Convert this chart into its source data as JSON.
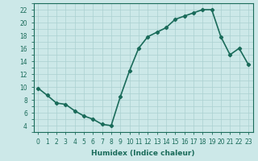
{
  "x": [
    0,
    1,
    2,
    3,
    4,
    5,
    6,
    7,
    8,
    9,
    10,
    11,
    12,
    13,
    14,
    15,
    16,
    17,
    18,
    19,
    20,
    21,
    22,
    23
  ],
  "y": [
    9.8,
    8.7,
    7.5,
    7.3,
    6.3,
    5.5,
    5.0,
    4.2,
    4.0,
    8.5,
    12.5,
    16.0,
    17.8,
    18.5,
    19.2,
    20.5,
    21.0,
    21.5,
    22.0,
    22.0,
    17.8,
    15.0,
    16.0,
    13.5
  ],
  "line_color": "#1a6b5a",
  "marker": "D",
  "marker_size": 2.2,
  "bg_color": "#cce8e8",
  "grid_color": "#aad0d0",
  "xlabel": "Humidex (Indice chaleur)",
  "ylim": [
    3,
    23
  ],
  "xlim": [
    -0.5,
    23.5
  ],
  "yticks": [
    4,
    6,
    8,
    10,
    12,
    14,
    16,
    18,
    20,
    22
  ],
  "xticks": [
    0,
    1,
    2,
    3,
    4,
    5,
    6,
    7,
    8,
    9,
    10,
    11,
    12,
    13,
    14,
    15,
    16,
    17,
    18,
    19,
    20,
    21,
    22,
    23
  ],
  "xtick_labels": [
    "0",
    "1",
    "2",
    "3",
    "4",
    "5",
    "6",
    "7",
    "8",
    "9",
    "10",
    "11",
    "12",
    "13",
    "14",
    "15",
    "16",
    "17",
    "18",
    "19",
    "20",
    "21",
    "22",
    "23"
  ],
  "tick_color": "#1a6b5a",
  "label_fontsize": 6.5,
  "tick_fontsize": 5.5,
  "linewidth": 1.2
}
